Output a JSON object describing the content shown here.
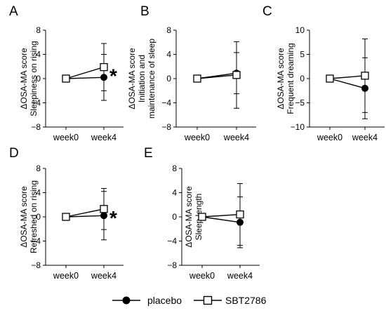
{
  "legend": {
    "placebo_label": "placebo",
    "sbt_label": "SBT2786"
  },
  "chart_data": [
    {
      "panel": "A",
      "type": "line",
      "categories": [
        "week0",
        "week4"
      ],
      "ylabel_lines": [
        "ΔOSA-MA score",
        "Sleepiness on rising"
      ],
      "yticks": [
        8,
        4,
        0,
        -4,
        -8
      ],
      "ylim": [
        -8,
        8
      ],
      "significance": "*",
      "series": [
        {
          "name": "placebo",
          "marker": "filled-circle",
          "values": [
            0,
            0.2
          ],
          "err": [
            0,
            3.8
          ]
        },
        {
          "name": "SBT2786",
          "marker": "open-square",
          "values": [
            0,
            1.9
          ],
          "err": [
            0,
            3.9
          ]
        }
      ]
    },
    {
      "panel": "B",
      "type": "line",
      "categories": [
        "week0",
        "week4"
      ],
      "ylabel_lines": [
        "ΔOSA-MA score",
        "Initiation and",
        "maintenance of sleep"
      ],
      "yticks": [
        8,
        4,
        0,
        -4,
        -8
      ],
      "ylim": [
        -8,
        8
      ],
      "significance": "",
      "series": [
        {
          "name": "placebo",
          "marker": "filled-circle",
          "values": [
            0,
            0.9
          ],
          "err": [
            0,
            3.4
          ]
        },
        {
          "name": "SBT2786",
          "marker": "open-square",
          "values": [
            0,
            0.6
          ],
          "err": [
            0,
            5.5
          ]
        }
      ]
    },
    {
      "panel": "C",
      "type": "line",
      "categories": [
        "week0",
        "week4"
      ],
      "ylabel_lines": [
        "ΔOSA-MA score",
        "Frequent dreaming"
      ],
      "yticks": [
        10,
        5,
        0,
        -5,
        -10
      ],
      "ylim": [
        -10,
        10
      ],
      "significance": "",
      "series": [
        {
          "name": "placebo",
          "marker": "filled-circle",
          "values": [
            0,
            -2.0
          ],
          "err": [
            0,
            6.3
          ]
        },
        {
          "name": "SBT2786",
          "marker": "open-square",
          "values": [
            0,
            0.6
          ],
          "err": [
            0,
            7.6
          ]
        }
      ]
    },
    {
      "panel": "D",
      "type": "line",
      "categories": [
        "week0",
        "week4"
      ],
      "ylabel_lines": [
        "ΔOSA-MA score",
        "Refreshed on rising"
      ],
      "yticks": [
        8,
        4,
        0,
        -4,
        -8
      ],
      "ylim": [
        -8,
        8
      ],
      "significance": "*",
      "series": [
        {
          "name": "placebo",
          "marker": "filled-circle",
          "values": [
            0,
            0.2
          ],
          "err": [
            0,
            4.0
          ]
        },
        {
          "name": "SBT2786",
          "marker": "open-square",
          "values": [
            0,
            1.3
          ],
          "err": [
            0,
            3.4
          ]
        }
      ]
    },
    {
      "panel": "E",
      "type": "line",
      "categories": [
        "week0",
        "week4"
      ],
      "ylabel_lines": [
        "ΔOSA-MA score",
        "Sleep length"
      ],
      "yticks": [
        8,
        4,
        0,
        -4,
        -8
      ],
      "ylim": [
        -8,
        8
      ],
      "significance": "",
      "series": [
        {
          "name": "placebo",
          "marker": "filled-circle",
          "values": [
            0,
            -0.9
          ],
          "err": [
            0,
            4.2
          ]
        },
        {
          "name": "SBT2786",
          "marker": "open-square",
          "values": [
            0,
            0.4
          ],
          "err": [
            0,
            5.1
          ]
        }
      ]
    }
  ]
}
